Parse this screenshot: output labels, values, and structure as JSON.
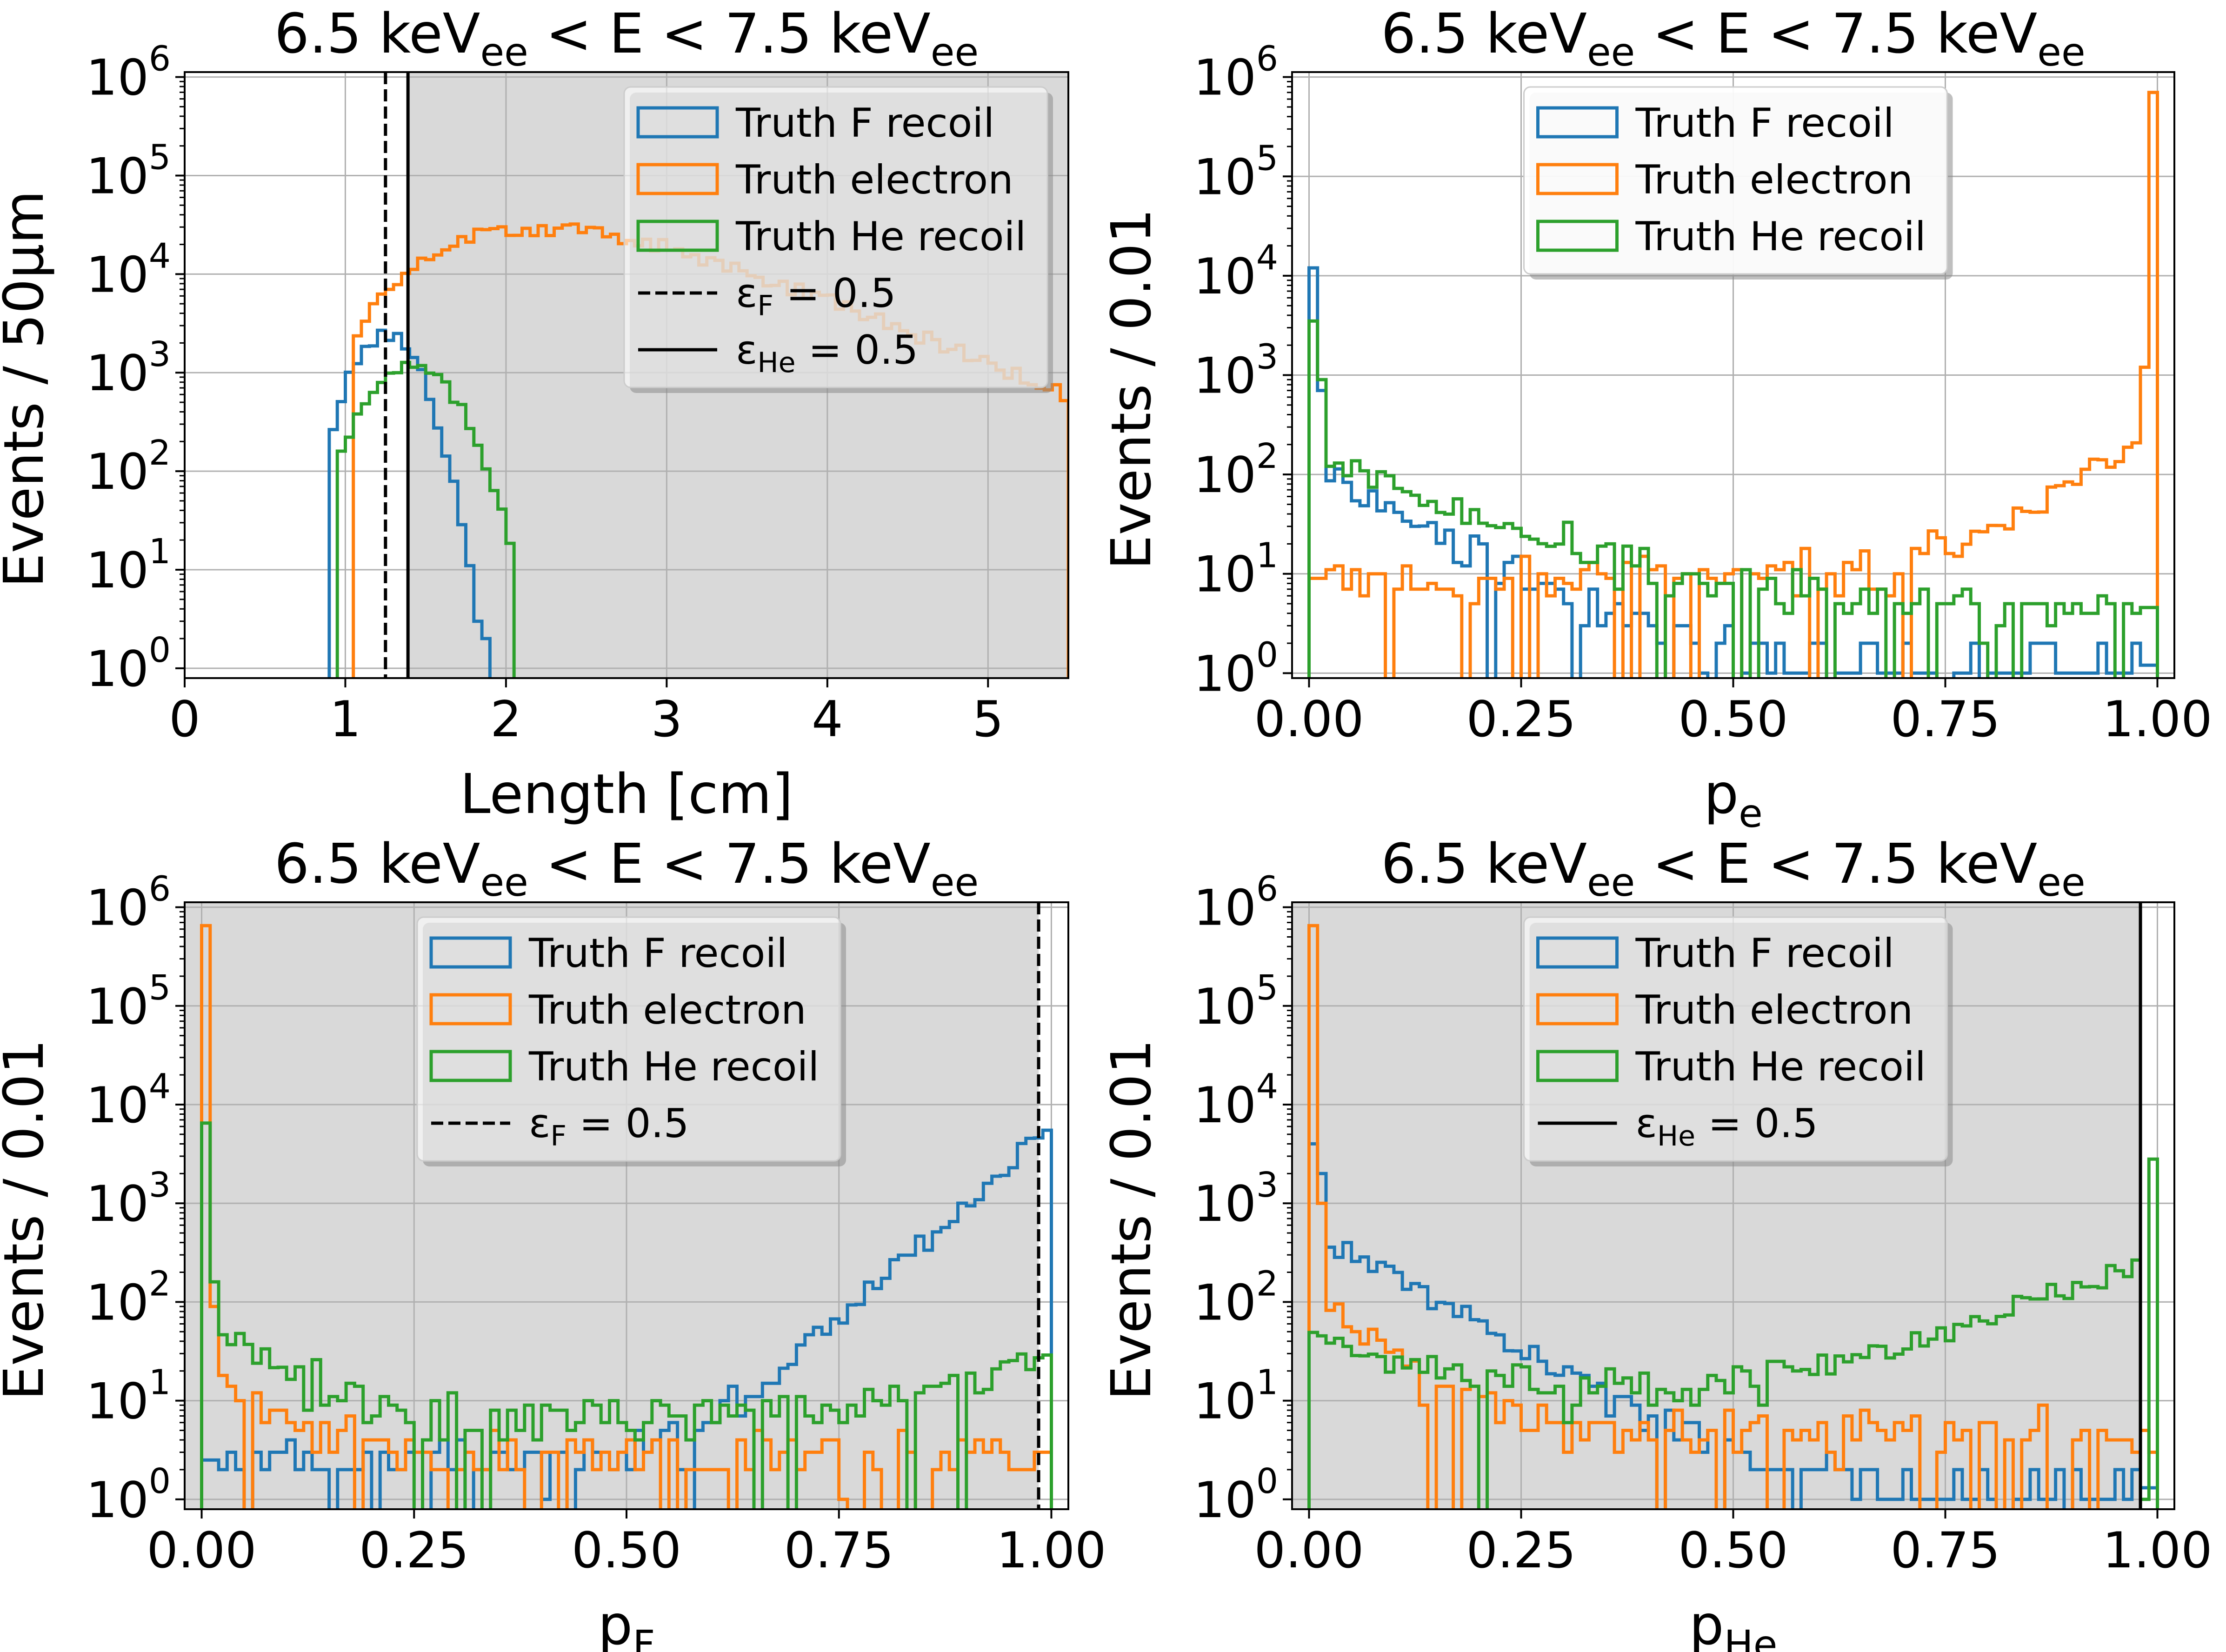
{
  "colors": {
    "f_recoil": "#1f77b4",
    "electron": "#ff7f0e",
    "he_recoil": "#2ca02c",
    "shade": "#d9d9d9",
    "grid": "#b0b0b0",
    "cut": "#000000"
  },
  "chart_data": [
    {
      "id": "length",
      "type": "histogram",
      "title_main": "6.5 keV",
      "title_sub": "ee",
      "title_mid": " < E < 7.5 keV",
      "title_sub2": "ee",
      "xlabel_main": "Length [cm]",
      "xlabel_sub": "",
      "ylabel": "Events / 50μm",
      "xlim": [
        0,
        5.5
      ],
      "ylog_range": [
        -0.1,
        6.05
      ],
      "xticks": [
        0,
        1,
        2,
        3,
        4,
        5
      ],
      "xtick_labels": [
        "0",
        "1",
        "2",
        "3",
        "4",
        "5"
      ],
      "bin_width": 0.05,
      "shaded_from": 1.39,
      "shaded_to": 5.5,
      "cut_lines": [
        {
          "x": 1.25,
          "style": "dashed"
        },
        {
          "x": 1.39,
          "style": "solid"
        }
      ],
      "legend_pos": "top-right",
      "legend": [
        {
          "kind": "box",
          "series": "f_recoil",
          "label": "Truth F recoil",
          "sub": "",
          "tail": ""
        },
        {
          "kind": "box",
          "series": "electron",
          "label": "Truth electron",
          "sub": "",
          "tail": ""
        },
        {
          "kind": "box",
          "series": "he_recoil",
          "label": "Truth He recoil",
          "sub": "",
          "tail": ""
        },
        {
          "kind": "line",
          "style": "dashed",
          "label": "ε",
          "sub": "F",
          "tail": " = 0.5"
        },
        {
          "kind": "line",
          "style": "solid",
          "label": "ε",
          "sub": "He",
          "tail": " = 0.5"
        }
      ],
      "series": [
        {
          "name": "Truth F recoil",
          "key": "f_recoil",
          "shape": "gauss",
          "params": {
            "center": 1.23,
            "sigma": 0.16,
            "peak": 2400,
            "start": 0.9,
            "end": 2.0
          }
        },
        {
          "name": "Truth electron",
          "key": "electron",
          "shape": "lognorm",
          "params": {
            "mode": 2.17,
            "width": 0.33,
            "peak": 29000,
            "start": 1.05,
            "end": 5.5,
            "floor": 14
          }
        },
        {
          "name": "Truth He recoil",
          "key": "he_recoil",
          "shape": "gauss",
          "params": {
            "center": 1.38,
            "sigma": 0.22,
            "peak": 1150,
            "start": 0.95,
            "end": 2.15
          }
        }
      ]
    },
    {
      "id": "pe",
      "type": "histogram",
      "title_main": "6.5 keV",
      "title_sub": "ee",
      "title_mid": " < E < 7.5 keV",
      "title_sub2": "ee",
      "xlabel_main": "p",
      "xlabel_sub": "e",
      "ylabel": "Events / 0.01",
      "xlim": [
        -0.02,
        1.02
      ],
      "ylog_range": [
        -0.05,
        6.05
      ],
      "xticks": [
        0,
        0.25,
        0.5,
        0.75,
        1.0
      ],
      "xtick_labels": [
        "0.00",
        "0.25",
        "0.50",
        "0.75",
        "1.00"
      ],
      "bin_width": 0.01,
      "shaded_from": null,
      "shaded_to": null,
      "cut_lines": [],
      "legend_pos": "top-center",
      "legend": [
        {
          "kind": "box",
          "series": "f_recoil",
          "label": "Truth F recoil",
          "sub": "",
          "tail": ""
        },
        {
          "kind": "box",
          "series": "electron",
          "label": "Truth electron",
          "sub": "",
          "tail": ""
        },
        {
          "kind": "box",
          "series": "he_recoil",
          "label": "Truth He recoil",
          "sub": "",
          "tail": ""
        }
      ],
      "series": [
        {
          "name": "Truth F recoil",
          "key": "f_recoil",
          "shape": "decay",
          "params": {
            "first": 12000,
            "second": 700,
            "scale": 0.09,
            "base": 120,
            "tail": 1.2
          }
        },
        {
          "name": "Truth electron",
          "key": "electron",
          "shape": "uturn",
          "params": {
            "floor": 9,
            "last": 700000,
            "second_last": 1200,
            "rise": 0.07
          }
        },
        {
          "name": "Truth He recoil",
          "key": "he_recoil",
          "shape": "decay",
          "params": {
            "first": 3500,
            "second": 900,
            "scale": 0.13,
            "base": 150,
            "tail": 4.5
          }
        }
      ]
    },
    {
      "id": "pF",
      "type": "histogram",
      "title_main": "6.5 keV",
      "title_sub": "ee",
      "title_mid": " < E < 7.5 keV",
      "title_sub2": "ee",
      "xlabel_main": "p",
      "xlabel_sub": "F",
      "ylabel": "Events / 0.01",
      "xlim": [
        -0.02,
        1.02
      ],
      "ylog_range": [
        -0.1,
        6.05
      ],
      "xticks": [
        0,
        0.25,
        0.5,
        0.75,
        1.0
      ],
      "xtick_labels": [
        "0.00",
        "0.25",
        "0.50",
        "0.75",
        "1.00"
      ],
      "bin_width": 0.01,
      "shaded_from": -0.02,
      "shaded_to": 0.985,
      "cut_lines": [
        {
          "x": 0.985,
          "style": "dashed"
        }
      ],
      "legend_pos": "top-center",
      "legend": [
        {
          "kind": "box",
          "series": "f_recoil",
          "label": "Truth F recoil",
          "sub": "",
          "tail": ""
        },
        {
          "kind": "box",
          "series": "electron",
          "label": "Truth electron",
          "sub": "",
          "tail": ""
        },
        {
          "kind": "box",
          "series": "he_recoil",
          "label": "Truth He recoil",
          "sub": "",
          "tail": ""
        },
        {
          "kind": "line",
          "style": "dashed",
          "label": "ε",
          "sub": "F",
          "tail": " = 0.5"
        }
      ],
      "series": [
        {
          "name": "Truth F recoil",
          "key": "f_recoil",
          "shape": "rise",
          "params": {
            "floor": 2.5,
            "last": 5500,
            "scale": 0.055
          }
        },
        {
          "name": "Truth electron",
          "key": "electron",
          "shape": "decay",
          "params": {
            "first": 650000,
            "second": 90,
            "scale": 0.05,
            "base": 25,
            "tail": 3
          }
        },
        {
          "name": "Truth He recoil",
          "key": "he_recoil",
          "shape": "decay",
          "params": {
            "first": 6500,
            "second": 160,
            "scale": 0.07,
            "base": 60,
            "tail": 6,
            "rise_end": 25
          }
        }
      ]
    },
    {
      "id": "pHe",
      "type": "histogram",
      "title_main": "6.5 keV",
      "title_sub": "ee",
      "title_mid": " < E < 7.5 keV",
      "title_sub2": "ee",
      "xlabel_main": "p",
      "xlabel_sub": "He",
      "ylabel": "Events / 0.01",
      "xlim": [
        -0.02,
        1.02
      ],
      "ylog_range": [
        -0.1,
        6.05
      ],
      "xticks": [
        0,
        0.25,
        0.5,
        0.75,
        1.0
      ],
      "xtick_labels": [
        "0.00",
        "0.25",
        "0.50",
        "0.75",
        "1.00"
      ],
      "bin_width": 0.01,
      "shaded_from": -0.02,
      "shaded_to": 0.98,
      "cut_lines": [
        {
          "x": 0.98,
          "style": "solid"
        }
      ],
      "legend_pos": "top-center",
      "legend": [
        {
          "kind": "box",
          "series": "f_recoil",
          "label": "Truth F recoil",
          "sub": "",
          "tail": ""
        },
        {
          "kind": "box",
          "series": "electron",
          "label": "Truth electron",
          "sub": "",
          "tail": ""
        },
        {
          "kind": "box",
          "series": "he_recoil",
          "label": "Truth He recoil",
          "sub": "",
          "tail": ""
        },
        {
          "kind": "line",
          "style": "solid",
          "label": "ε",
          "sub": "He",
          "tail": " = 0.5"
        }
      ],
      "series": [
        {
          "name": "Truth F recoil",
          "key": "f_recoil",
          "shape": "decay",
          "params": {
            "first": 4000,
            "second": 2000,
            "scale": 0.09,
            "base": 500,
            "tail": 1.3
          }
        },
        {
          "name": "Truth electron",
          "key": "electron",
          "shape": "decay",
          "params": {
            "first": 650000,
            "second": 1000,
            "scale": 0.06,
            "base": 120,
            "tail": 5
          }
        },
        {
          "name": "Truth He recoil",
          "key": "he_recoil",
          "shape": "uturn",
          "params": {
            "floor": 9,
            "last": 2800,
            "second_last": 550,
            "rise": 0.13,
            "start_val": 40
          }
        }
      ]
    }
  ]
}
